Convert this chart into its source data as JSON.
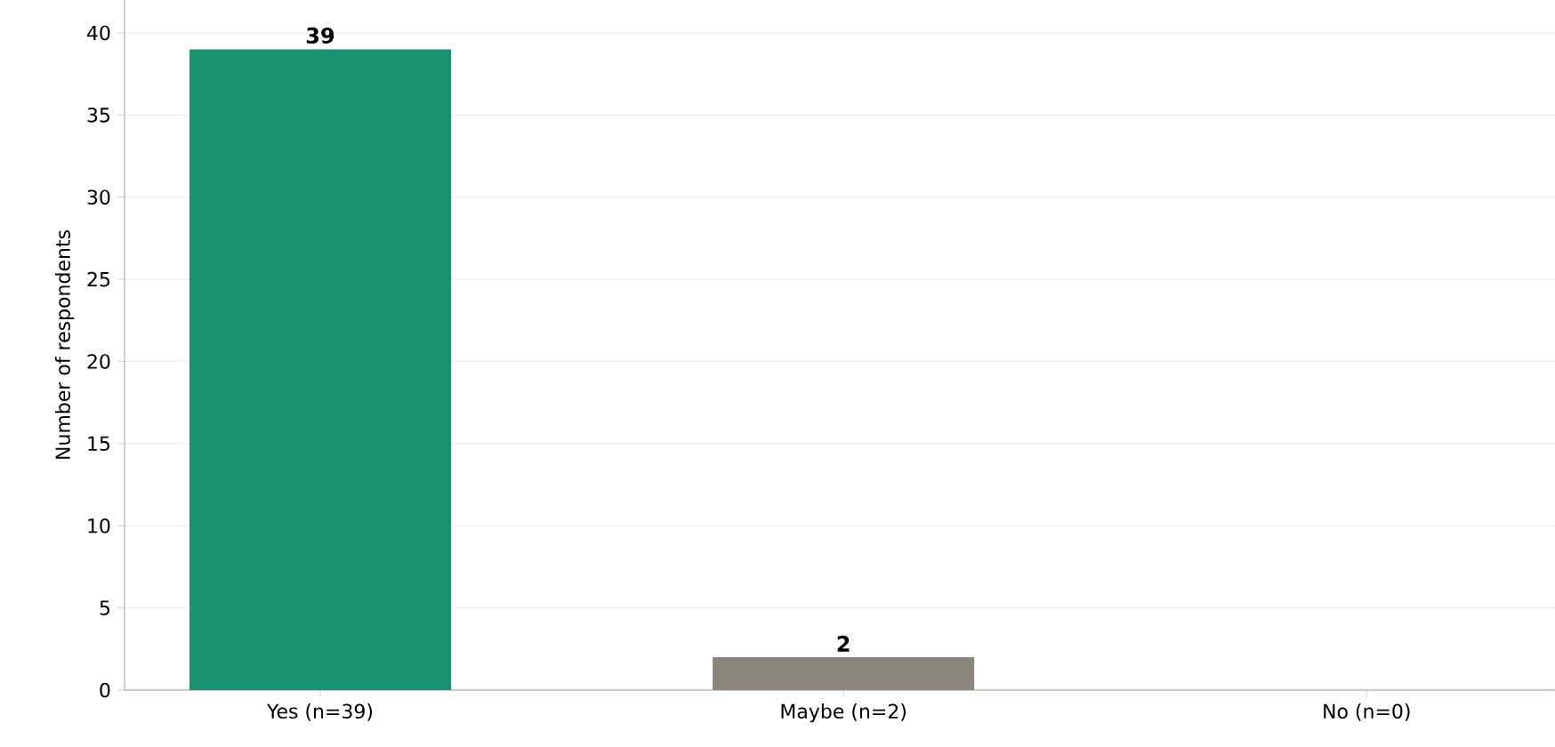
{
  "chart_data": {
    "type": "bar",
    "ylabel": "Number of respondents",
    "categories": [
      "Yes (n=39)",
      "Maybe (n=2)",
      "No (n=0)"
    ],
    "values": [
      39,
      2,
      0
    ],
    "colors": [
      "#1a9270",
      "#8a867c",
      "#8a867c"
    ],
    "value_labels": [
      "39",
      "2",
      null
    ],
    "ylim": [
      0,
      42
    ],
    "yticks": [
      0,
      5,
      10,
      15,
      20,
      25,
      30,
      35,
      40
    ],
    "grid": "y"
  }
}
